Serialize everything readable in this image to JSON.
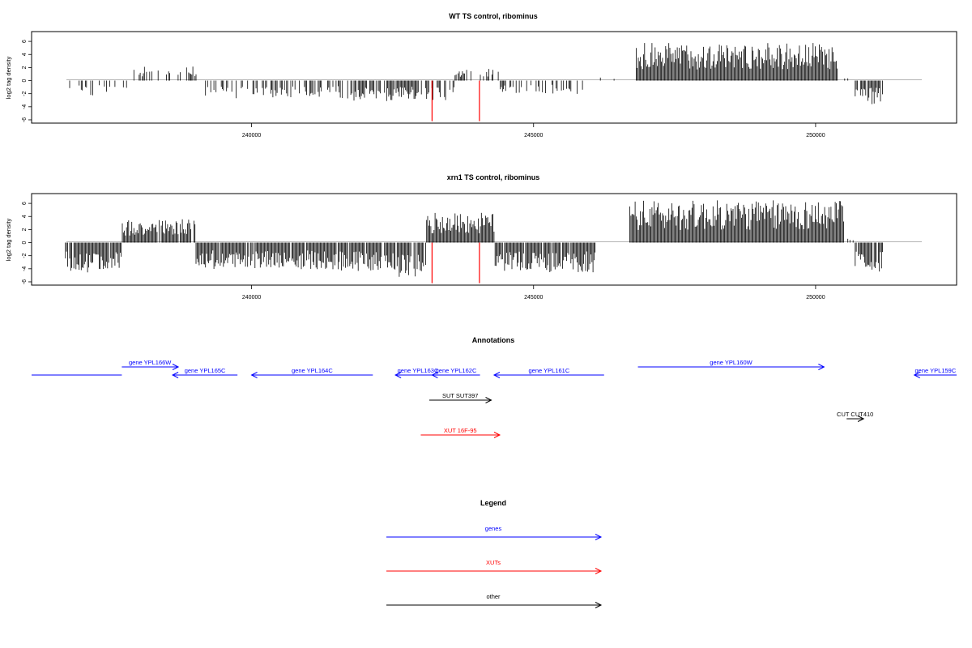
{
  "chart_data": [
    {
      "type": "bar",
      "title": "WT TS control, ribominus",
      "xlabel": "",
      "ylabel": "log2 tag density",
      "xlim": [
        236100,
        252500
      ],
      "ylim": [
        -6.5,
        7.5
      ],
      "xticks": [
        240000,
        245000,
        250000
      ],
      "yticks": [
        6,
        4,
        2,
        0,
        -2,
        -4,
        -6
      ],
      "x_range_data": [
        236700,
        251200
      ],
      "highlight_color": "#ff0000",
      "highlights": [
        {
          "x": 243200,
          "y": -6.2
        },
        {
          "x": 244040,
          "y": -6.2
        }
      ],
      "profile": [
        {
          "x0": 236700,
          "x1": 237900,
          "y": -2.0,
          "density": 0.35
        },
        {
          "x0": 237900,
          "x1": 239100,
          "y": 1.8,
          "density": 0.25
        },
        {
          "x0": 239100,
          "x1": 241800,
          "y": -2.3,
          "density": 0.4
        },
        {
          "x0": 241800,
          "x1": 243000,
          "y": -2.6,
          "density": 0.8
        },
        {
          "x0": 243000,
          "x1": 243600,
          "y": -2.6,
          "density": 0.5
        },
        {
          "x0": 243600,
          "x1": 244400,
          "y": 1.5,
          "density": 0.45
        },
        {
          "x0": 244400,
          "x1": 246000,
          "y": -1.8,
          "density": 0.35
        },
        {
          "x0": 246000,
          "x1": 246800,
          "y": 0.4,
          "density": 0.05
        },
        {
          "x0": 246800,
          "x1": 250400,
          "y": 4.8,
          "density": 1.0
        },
        {
          "x0": 250400,
          "x1": 250700,
          "y": 0.4,
          "density": 0.1
        },
        {
          "x0": 250700,
          "x1": 251200,
          "y": -3.0,
          "density": 0.8
        }
      ]
    },
    {
      "type": "bar",
      "title": "xrn1 TS control, ribominus",
      "xlabel": "",
      "ylabel": "log2 tag density",
      "xlim": [
        236100,
        252500
      ],
      "ylim": [
        -6.5,
        7.5
      ],
      "xticks": [
        240000,
        245000,
        250000
      ],
      "yticks": [
        6,
        4,
        2,
        0,
        -2,
        -4,
        -6
      ],
      "x_range_data": [
        236700,
        251200
      ],
      "highlight_color": "#ff0000",
      "highlights": [
        {
          "x": 243200,
          "y": -6.2
        },
        {
          "x": 244040,
          "y": -6.2
        }
      ],
      "profile": [
        {
          "x0": 236700,
          "x1": 237700,
          "y": -3.8,
          "density": 0.95
        },
        {
          "x0": 237700,
          "x1": 239000,
          "y": 3.0,
          "density": 0.95
        },
        {
          "x0": 239000,
          "x1": 241500,
          "y": -3.4,
          "density": 0.95
        },
        {
          "x0": 241500,
          "x1": 242600,
          "y": -3.6,
          "density": 0.9
        },
        {
          "x0": 242600,
          "x1": 243100,
          "y": -4.5,
          "density": 0.95
        },
        {
          "x0": 243100,
          "x1": 244300,
          "y": 3.8,
          "density": 1.0
        },
        {
          "x0": 244300,
          "x1": 246100,
          "y": -3.8,
          "density": 0.95
        },
        {
          "x0": 246100,
          "x1": 246700,
          "y": 0.0,
          "density": 0.05
        },
        {
          "x0": 246700,
          "x1": 250500,
          "y": 5.4,
          "density": 1.0
        },
        {
          "x0": 250500,
          "x1": 250700,
          "y": 0.5,
          "density": 0.2
        },
        {
          "x0": 250700,
          "x1": 251200,
          "y": -3.8,
          "density": 0.95
        }
      ]
    }
  ],
  "annotations": {
    "title": "Annotations",
    "xlim": [
      236100,
      252500
    ],
    "features": [
      {
        "label": "",
        "strand": "-",
        "start": 236100,
        "end": 237700,
        "row": 1,
        "color": "#0000ff",
        "show_arrow": false,
        "label_at": "mid"
      },
      {
        "label": "gene YPL166W",
        "strand": "+",
        "start": 237700,
        "end": 238700,
        "row": 0,
        "color": "#0000ff",
        "show_arrow": true,
        "label_at": "mid"
      },
      {
        "label": "gene YPL165C",
        "strand": "-",
        "start": 238600,
        "end": 239750,
        "row": 1,
        "color": "#0000ff",
        "show_arrow": true,
        "label_at": "mid"
      },
      {
        "label": "gene YPL164C",
        "strand": "-",
        "start": 240000,
        "end": 242150,
        "row": 1,
        "color": "#0000ff",
        "show_arrow": true,
        "label_at": "mid"
      },
      {
        "label": "gene YPL163C",
        "strand": "-",
        "start": 242550,
        "end": 243350,
        "row": 1,
        "color": "#0000ff",
        "show_arrow": true,
        "label_at": "mid"
      },
      {
        "label": "gene YPL162C",
        "strand": "-",
        "start": 243200,
        "end": 244050,
        "row": 1,
        "color": "#0000ff",
        "show_arrow": true,
        "label_at": "mid"
      },
      {
        "label": "gene YPL161C",
        "strand": "-",
        "start": 244300,
        "end": 246250,
        "row": 1,
        "color": "#0000ff",
        "show_arrow": true,
        "label_at": "mid"
      },
      {
        "label": "gene YPL160W",
        "strand": "+",
        "start": 246850,
        "end": 250150,
        "row": 0,
        "color": "#0000ff",
        "show_arrow": true,
        "label_at": "mid"
      },
      {
        "label": "gene YPL159C",
        "strand": "-",
        "start": 251750,
        "end": 252500,
        "row": 1,
        "color": "#0000ff",
        "show_arrow": true,
        "label_at": "mid"
      },
      {
        "label": "SUT SUT397",
        "strand": "+",
        "start": 243150,
        "end": 244250,
        "row": 2,
        "color": "#000000",
        "show_arrow": true,
        "label_at": "mid"
      },
      {
        "label": "CUT CUT410",
        "strand": "+",
        "start": 250550,
        "end": 250850,
        "row": 3,
        "color": "#000000",
        "show_arrow": true,
        "label_at": "mid"
      },
      {
        "label": "XUT 16F-95",
        "strand": "+",
        "start": 243000,
        "end": 244400,
        "row": 4,
        "color": "#ff0000",
        "show_arrow": true,
        "label_at": "mid"
      }
    ]
  },
  "legend": {
    "title": "Legend",
    "items": [
      {
        "label": "genes",
        "color": "#0000ff"
      },
      {
        "label": "XUTs",
        "color": "#ff0000"
      },
      {
        "label": "other",
        "color": "#000000"
      }
    ]
  }
}
